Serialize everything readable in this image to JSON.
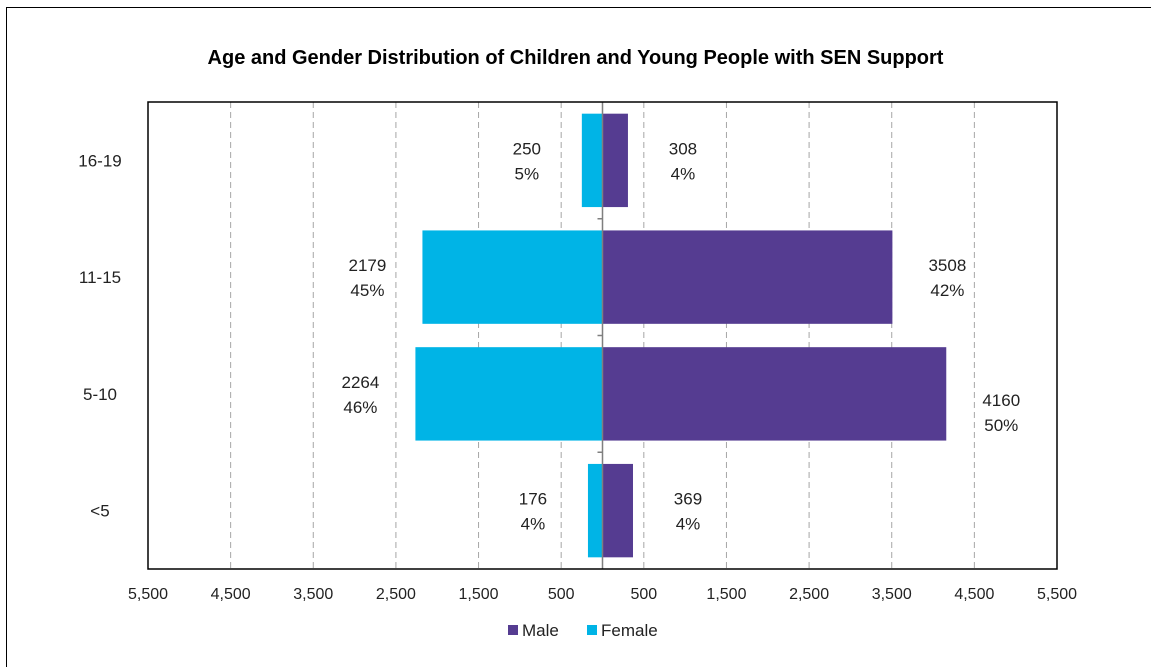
{
  "chart_data": {
    "type": "bar",
    "orientation": "horizontal",
    "title": "Age and Gender Distribution of Children and Young People with SEN Support",
    "categories": [
      "16-19",
      "11-15",
      "5-10",
      "<5"
    ],
    "series": [
      {
        "name": "Male",
        "values": [
          308,
          3508,
          4160,
          369
        ],
        "labels": [
          "308",
          "3508",
          "4160",
          "369"
        ],
        "percents": [
          "4%",
          "42%",
          "50%",
          "4%"
        ],
        "color": "#553C91"
      },
      {
        "name": "Female",
        "values": [
          250,
          2179,
          2264,
          176
        ],
        "labels": [
          "250",
          "2179",
          "2264",
          "176"
        ],
        "percents": [
          "5%",
          "45%",
          "46%",
          "4%"
        ],
        "color": "#00B4E6"
      }
    ],
    "xlim": [
      -5500,
      5500
    ],
    "x_ticks": [
      -5500,
      -4500,
      -3500,
      -2500,
      -1500,
      -500,
      500,
      1500,
      2500,
      3500,
      4500,
      5500
    ],
    "x_tick_labels": [
      "5,500",
      "4,500",
      "3,500",
      "2,500",
      "1,500",
      "500",
      "500",
      "1,500",
      "2,500",
      "3,500",
      "4,500",
      "5,500"
    ],
    "grid": "vertical-dashed",
    "legend": "bottom"
  }
}
